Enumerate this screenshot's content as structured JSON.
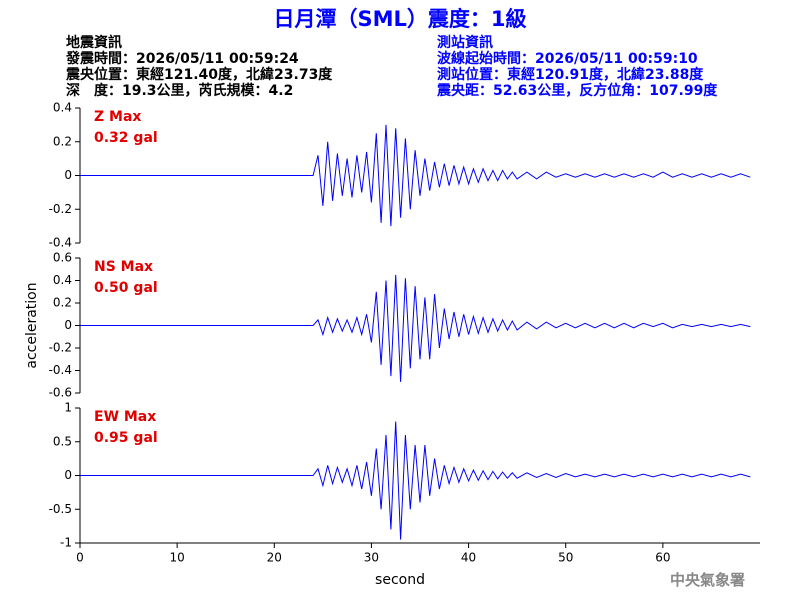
{
  "header": {
    "title": "日月潭（SML）震度：1級",
    "left": [
      "地震資訊",
      "發震時間：2026/05/11 00:59:24",
      "震央位置：東經121.40度，北緯23.73度",
      "深　度：19.3公里，芮氏規模：4.2"
    ],
    "right": [
      "測站資訊",
      "波線起始時間：2026/05/11 00:59:10",
      "測站位置：東經120.91度，北緯23.88度",
      "震央距：52.63公里，反方位角：107.99度"
    ]
  },
  "footer": "中央氣象署",
  "chart_data": [
    {
      "type": "line",
      "color": "#0000ff",
      "annotations": [
        "Z Max",
        "0.32 gal"
      ],
      "xlim": [
        0,
        70
      ],
      "ylim": [
        -0.4,
        0.4
      ],
      "yticks": [
        0.4,
        0.2,
        0,
        -0.2,
        -0.4
      ],
      "x": [
        0,
        24,
        24.5,
        25,
        25.5,
        26,
        26.5,
        27,
        27.5,
        28,
        28.5,
        29,
        29.5,
        30,
        30.5,
        31,
        31.5,
        32,
        32.5,
        33,
        33.5,
        34,
        34.5,
        35,
        35.5,
        36,
        36.5,
        37,
        37.5,
        38,
        38.5,
        39,
        39.5,
        40,
        40.5,
        41,
        41.5,
        42,
        42.5,
        43,
        43.5,
        44,
        44.5,
        45,
        46,
        47,
        48,
        49,
        50,
        51,
        52,
        53,
        54,
        55,
        56,
        57,
        58,
        59,
        60,
        61,
        62,
        63,
        64,
        65,
        66,
        67,
        68,
        69
      ],
      "values": [
        0,
        0,
        0.12,
        -0.18,
        0.2,
        -0.15,
        0.13,
        -0.12,
        0.1,
        -0.13,
        0.12,
        -0.1,
        0.14,
        -0.16,
        0.25,
        -0.28,
        0.3,
        -0.3,
        0.28,
        -0.25,
        0.22,
        -0.2,
        0.15,
        -0.12,
        0.1,
        -0.09,
        0.08,
        -0.07,
        0.07,
        -0.06,
        0.06,
        -0.05,
        0.05,
        -0.05,
        0.04,
        -0.04,
        0.04,
        -0.03,
        0.03,
        -0.03,
        0.03,
        -0.02,
        0.02,
        -0.02,
        0.02,
        -0.02,
        0.02,
        -0.01,
        0.01,
        -0.01,
        0.01,
        -0.01,
        0.01,
        -0.01,
        0.01,
        -0.01,
        0.01,
        -0.01,
        0.02,
        -0.01,
        0.01,
        -0.01,
        0.01,
        -0.01,
        0.01,
        -0.01,
        0.01,
        -0.01
      ]
    },
    {
      "type": "line",
      "color": "#0000ff",
      "annotations": [
        "NS Max",
        "0.50 gal"
      ],
      "ylabel": "acceleration",
      "xlim": [
        0,
        70
      ],
      "ylim": [
        -0.6,
        0.6
      ],
      "yticks": [
        0.6,
        0.4,
        0.2,
        0,
        -0.2,
        -0.4,
        -0.6
      ],
      "x": [
        0,
        24,
        24.5,
        25,
        25.5,
        26,
        26.5,
        27,
        27.5,
        28,
        28.5,
        29,
        29.5,
        30,
        30.5,
        31,
        31.5,
        32,
        32.5,
        33,
        33.5,
        34,
        34.5,
        35,
        35.5,
        36,
        36.5,
        37,
        37.5,
        38,
        38.5,
        39,
        39.5,
        40,
        40.5,
        41,
        41.5,
        42,
        42.5,
        43,
        43.5,
        44,
        44.5,
        45,
        46,
        47,
        48,
        49,
        50,
        51,
        52,
        53,
        54,
        55,
        56,
        57,
        58,
        59,
        60,
        61,
        62,
        63,
        64,
        65,
        66,
        67,
        68,
        69
      ],
      "values": [
        0,
        0,
        0.05,
        -0.08,
        0.07,
        -0.06,
        0.06,
        -0.05,
        0.05,
        -0.06,
        0.07,
        -0.08,
        0.1,
        -0.15,
        0.3,
        -0.35,
        0.4,
        -0.45,
        0.45,
        -0.5,
        0.42,
        -0.38,
        0.35,
        -0.3,
        0.25,
        -0.3,
        0.28,
        -0.2,
        0.15,
        -0.12,
        0.12,
        -0.1,
        0.1,
        -0.08,
        0.08,
        -0.07,
        0.07,
        -0.06,
        0.06,
        -0.05,
        0.05,
        -0.04,
        0.04,
        -0.04,
        0.03,
        -0.03,
        0.03,
        -0.02,
        0.02,
        -0.02,
        0.02,
        -0.02,
        0.02,
        -0.02,
        0.02,
        -0.02,
        0.02,
        -0.01,
        0.02,
        -0.02,
        0.01,
        -0.01,
        0.01,
        -0.01,
        0.01,
        -0.01,
        0.01,
        -0.01
      ]
    },
    {
      "type": "line",
      "color": "#0000ff",
      "annotations": [
        "EW Max",
        "0.95 gal"
      ],
      "xlabel": "second",
      "xlim": [
        0,
        70
      ],
      "xticks": [
        0,
        10,
        20,
        30,
        40,
        50,
        60
      ],
      "ylim": [
        -1,
        1
      ],
      "yticks": [
        1,
        0.5,
        0,
        -0.5,
        -1
      ],
      "x": [
        0,
        24,
        24.5,
        25,
        25.5,
        26,
        26.5,
        27,
        27.5,
        28,
        28.5,
        29,
        29.5,
        30,
        30.5,
        31,
        31.5,
        32,
        32.5,
        33,
        33.5,
        34,
        34.5,
        35,
        35.5,
        36,
        36.5,
        37,
        37.5,
        38,
        38.5,
        39,
        39.5,
        40,
        40.5,
        41,
        41.5,
        42,
        42.5,
        43,
        43.5,
        44,
        44.5,
        45,
        46,
        47,
        48,
        49,
        50,
        51,
        52,
        53,
        54,
        55,
        56,
        57,
        58,
        59,
        60,
        61,
        62,
        63,
        64,
        65,
        66,
        67,
        68,
        69
      ],
      "values": [
        0,
        0,
        0.1,
        -0.15,
        0.15,
        -0.12,
        0.12,
        -0.1,
        0.1,
        -0.15,
        0.15,
        -0.2,
        0.2,
        -0.3,
        0.4,
        -0.5,
        0.6,
        -0.8,
        0.8,
        -0.95,
        0.6,
        -0.5,
        0.45,
        -0.4,
        0.45,
        -0.3,
        0.25,
        -0.2,
        0.15,
        -0.12,
        0.12,
        -0.1,
        0.1,
        -0.08,
        0.08,
        -0.07,
        0.07,
        -0.06,
        0.06,
        -0.05,
        0.05,
        -0.04,
        0.04,
        -0.04,
        0.04,
        -0.03,
        0.03,
        -0.03,
        0.03,
        -0.02,
        0.02,
        -0.02,
        0.02,
        -0.02,
        0.02,
        -0.02,
        0.02,
        -0.02,
        0.02,
        -0.02,
        0.02,
        -0.02,
        0.02,
        -0.02,
        0.02,
        -0.02,
        0.02,
        -0.02
      ]
    }
  ]
}
